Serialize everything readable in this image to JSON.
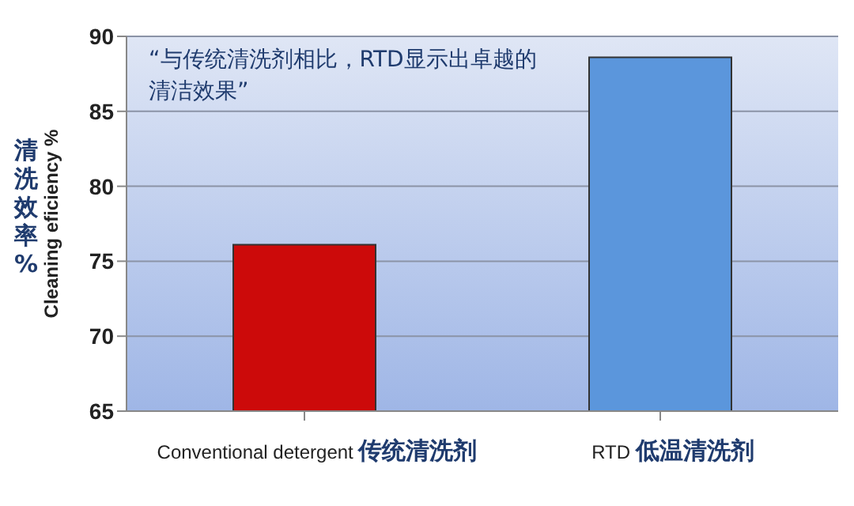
{
  "chart_data": {
    "type": "bar",
    "categories": [
      "Conventional detergent 传统清洗剂",
      "RTD 低温清洗剂"
    ],
    "values": [
      76.1,
      88.6
    ],
    "colors": [
      "#cc0a0a",
      "#5b96dc"
    ],
    "ylim": [
      65,
      90
    ],
    "yticks": [
      65,
      70,
      75,
      80,
      85,
      90
    ],
    "grid": "y",
    "ylabel": "Cleaning eficiency %",
    "annotations": [
      "清洗效率 %",
      "“与传统清洗剂相比，RTD显示出卓越的清洁效果”"
    ]
  }
}
